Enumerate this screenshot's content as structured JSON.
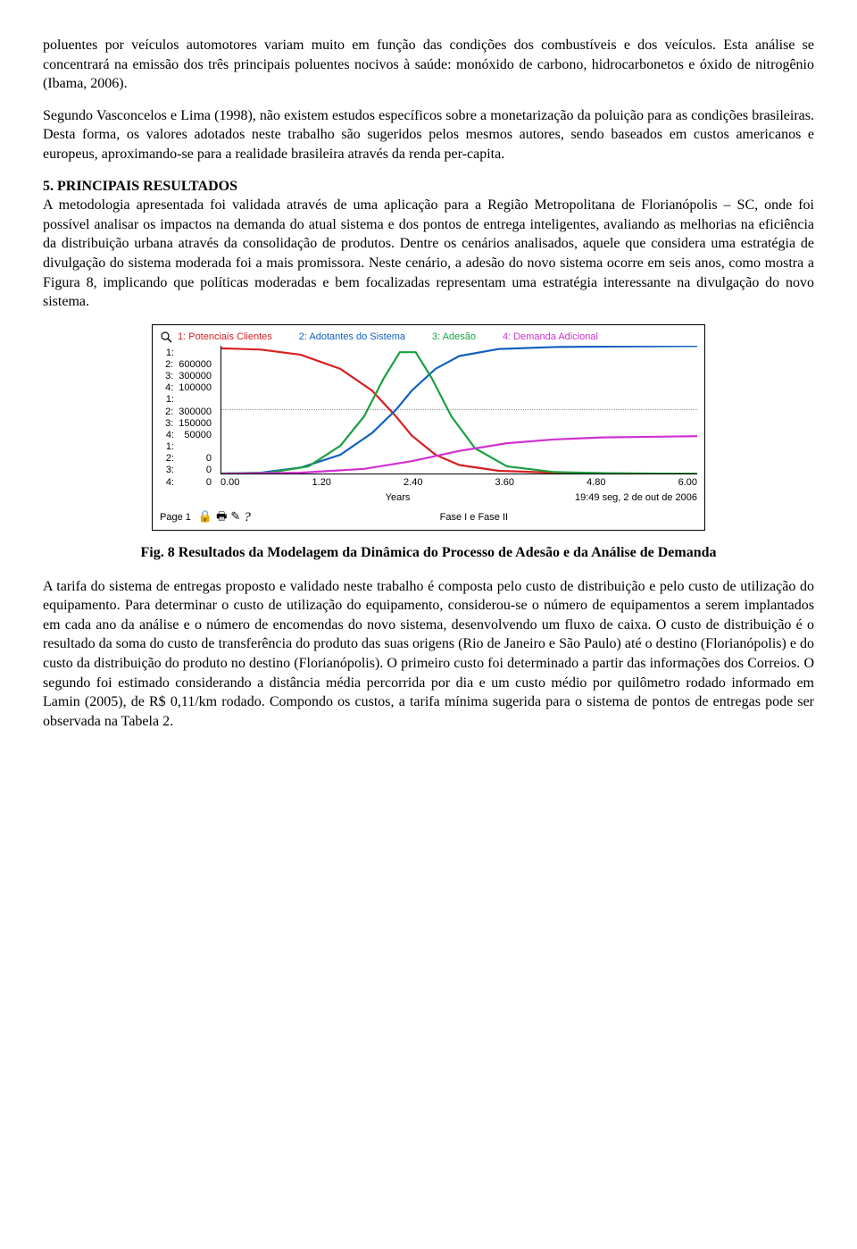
{
  "paragraphs": {
    "p1": "poluentes por veículos automotores variam muito em função das condições dos combustíveis e dos veículos. Esta análise se concentrará na emissão dos três principais poluentes nocivos à saúde: monóxido de carbono, hidrocarbonetos e óxido de nitrogênio (Ibama, 2006).",
    "p2": "Segundo Vasconcelos e Lima (1998), não existem estudos específicos sobre a monetarização da poluição para as condições brasileiras. Desta forma, os valores adotados neste trabalho são sugeridos pelos mesmos autores, sendo baseados em custos americanos e europeus, aproximando-se para a realidade brasileira através da renda per-capita.",
    "section5_number": "5.",
    "section5_title": "PRINCIPAIS RESULTADOS",
    "p3": "A metodologia apresentada foi validada através de uma aplicação para a Região Metropolitana de Florianópolis – SC, onde foi possível analisar os impactos na demanda do atual sistema e dos pontos de entrega inteligentes, avaliando as melhorias na eficiência da distribuição urbana através da consolidação de produtos. Dentre os cenários analisados, aquele que considera uma estratégia de divulgação do sistema moderada foi a mais promissora. Neste cenário, a adesão do novo sistema ocorre em seis anos, como mostra a Figura 8, implicando que políticas moderadas e bem focalizadas representam uma estratégia interessante na divulgação do novo sistema.",
    "fig_caption": "Fig. 8 Resultados da Modelagem da Dinâmica do Processo de Adesão e da Análise de Demanda",
    "p4": "A tarifa do sistema de entregas proposto e validado neste trabalho é composta pelo custo de distribuição e pelo custo de utilização do equipamento. Para determinar o custo de utilização do equipamento, considerou-se o número de equipamentos a serem implantados em cada ano da análise e o número de encomendas do novo sistema, desenvolvendo um fluxo de caixa. O custo de distribuição é o resultado da soma do custo de transferência do produto das suas origens (Rio de Janeiro e São Paulo) até o destino (Florianópolis) e do custo da distribuição do produto no destino (Florianópolis). O primeiro custo foi determinado a partir das informações dos Correios. O segundo foi estimado considerando a distância média percorrida por dia e um custo médio por quilômetro rodado informado em Lamin (2005), de R$ 0,11/km rodado. Compondo os custos, a tarifa mínima sugerida para o sistema de pontos de entregas pode ser observada na Tabela 2."
  },
  "chart": {
    "type": "line",
    "legend": [
      {
        "id": "1",
        "label": "1: Potenciais Clientes",
        "color": "#d62020"
      },
      {
        "id": "2",
        "label": "2: Adotantes do Sistema",
        "color": "#1060c0"
      },
      {
        "id": "3",
        "label": "3: Adesão",
        "color": "#1aa040"
      },
      {
        "id": "4",
        "label": "4: Demanda Adicional",
        "color": "#d030d0"
      }
    ],
    "y_blocks": [
      {
        "rows": [
          [
            "1:",
            ""
          ],
          [
            "2:",
            "600000"
          ],
          [
            "3:",
            "300000"
          ],
          [
            "4:",
            "100000"
          ]
        ]
      },
      {
        "rows": [
          [
            "1:",
            ""
          ],
          [
            "2:",
            "300000"
          ],
          [
            "3:",
            "150000"
          ],
          [
            "4:",
            "50000"
          ]
        ]
      },
      {
        "rows": [
          [
            "1:",
            ""
          ],
          [
            "2:",
            "0"
          ],
          [
            "3:",
            "0"
          ],
          [
            "4:",
            "0"
          ]
        ]
      }
    ],
    "xticks": [
      "0.00",
      "1.20",
      "2.40",
      "3.60",
      "4.80",
      "6.00"
    ],
    "x_axis_label": "Years",
    "footer_left": "Page 1",
    "footer_center": "Fase I e Fase II",
    "footer_right": "19:49    seg, 2 de out de 2006",
    "series": {
      "s1": {
        "color": "#d62020",
        "width": 2.2,
        "points": [
          [
            0,
            0.02
          ],
          [
            0.5,
            0.03
          ],
          [
            1.0,
            0.07
          ],
          [
            1.5,
            0.18
          ],
          [
            1.9,
            0.35
          ],
          [
            2.2,
            0.55
          ],
          [
            2.4,
            0.7
          ],
          [
            2.7,
            0.85
          ],
          [
            3.0,
            0.93
          ],
          [
            3.5,
            0.975
          ],
          [
            4.2,
            0.99
          ],
          [
            5.0,
            0.995
          ],
          [
            6.0,
            0.998
          ]
        ]
      },
      "s2": {
        "color": "#1060c0",
        "width": 2.2,
        "points": [
          [
            0,
            0.998
          ],
          [
            0.5,
            0.99
          ],
          [
            1.0,
            0.95
          ],
          [
            1.5,
            0.85
          ],
          [
            1.9,
            0.68
          ],
          [
            2.2,
            0.5
          ],
          [
            2.4,
            0.35
          ],
          [
            2.7,
            0.18
          ],
          [
            3.0,
            0.08
          ],
          [
            3.5,
            0.025
          ],
          [
            4.2,
            0.01
          ],
          [
            5.0,
            0.005
          ],
          [
            6.0,
            0.002
          ]
        ]
      },
      "s3": {
        "color": "#1aa040",
        "width": 2.2,
        "points": [
          [
            0,
            0.995
          ],
          [
            0.6,
            0.99
          ],
          [
            1.1,
            0.94
          ],
          [
            1.5,
            0.78
          ],
          [
            1.8,
            0.55
          ],
          [
            2.05,
            0.25
          ],
          [
            2.25,
            0.05
          ],
          [
            2.45,
            0.05
          ],
          [
            2.65,
            0.25
          ],
          [
            2.9,
            0.55
          ],
          [
            3.2,
            0.8
          ],
          [
            3.6,
            0.94
          ],
          [
            4.2,
            0.985
          ],
          [
            5.0,
            0.995
          ],
          [
            6.0,
            0.998
          ]
        ]
      },
      "s4": {
        "color": "#d030d0",
        "width": 2.2,
        "points": [
          [
            0,
            0.998
          ],
          [
            1.0,
            0.99
          ],
          [
            1.8,
            0.96
          ],
          [
            2.4,
            0.9
          ],
          [
            3.0,
            0.82
          ],
          [
            3.6,
            0.76
          ],
          [
            4.2,
            0.73
          ],
          [
            4.8,
            0.715
          ],
          [
            5.4,
            0.71
          ],
          [
            6.0,
            0.705
          ]
        ]
      }
    },
    "xlim": [
      0,
      6
    ],
    "grid_y": [
      0.5
    ]
  }
}
